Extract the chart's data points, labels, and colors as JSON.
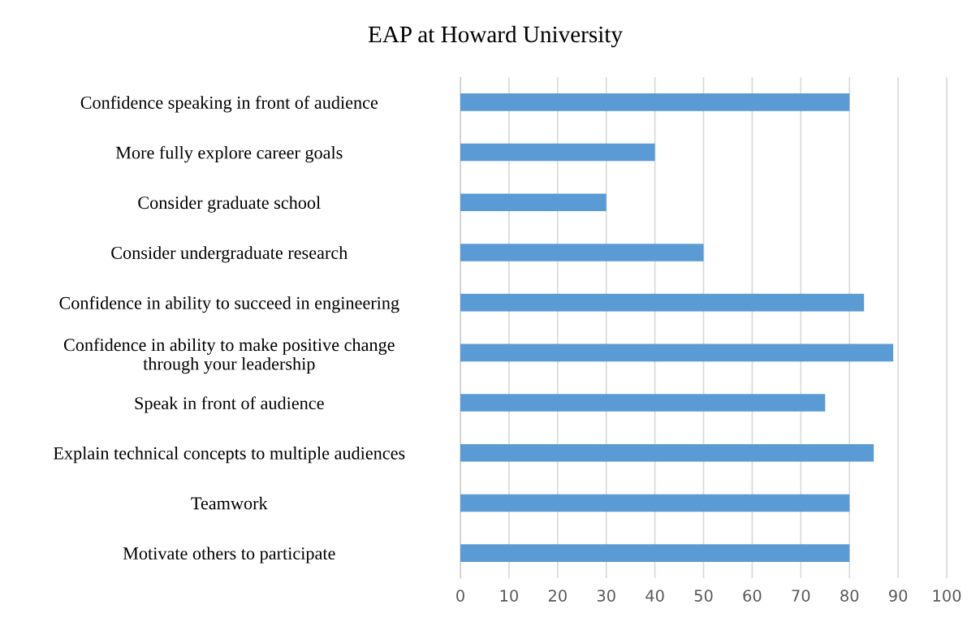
{
  "chart_data": {
    "type": "bar",
    "orientation": "horizontal",
    "title": "EAP at Howard University",
    "categories": [
      "Confidence speaking in front of audience",
      "More fully explore career goals",
      "Consider graduate school",
      "Consider undergraduate research",
      "Confidence in ability to succeed in engineering",
      "Confidence in ability to make positive change\nthrough your leadership",
      "Speak in front of audience",
      "Explain technical concepts to multiple audiences",
      "Teamwork",
      "Motivate others to participate"
    ],
    "values": [
      80,
      40,
      30,
      50,
      83,
      89,
      75,
      85,
      80,
      80
    ],
    "color": "#5b9bd5",
    "xlim": [
      0,
      100
    ],
    "xticks": [
      0,
      10,
      20,
      30,
      40,
      50,
      60,
      70,
      80,
      90,
      100
    ],
    "grid": "x",
    "legend": false
  }
}
